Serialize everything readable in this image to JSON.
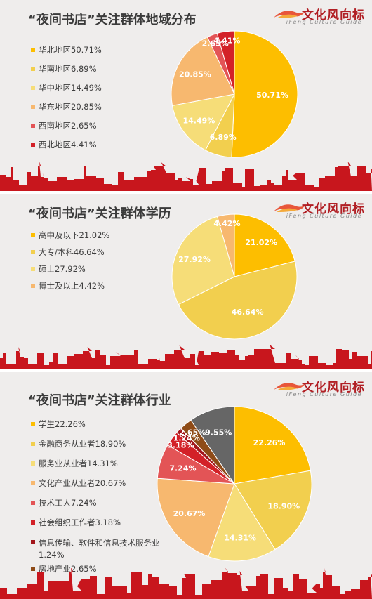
{
  "brand": {
    "name_cn": "文化风向标",
    "name_en": "iFeng Culture Guide"
  },
  "colors": {
    "skyline": "#c8161d",
    "slice_label": "#ffffff",
    "title": "#3b3b3b"
  },
  "chart_data": [
    {
      "type": "pie",
      "title": "“夜间书店”关注群体地域分布",
      "slices": [
        {
          "label": "华北地区",
          "value": 50.71,
          "display": "50.71%",
          "legend": "华北地区50.71%",
          "color": "#fdbe00"
        },
        {
          "label": "华南地区",
          "value": 6.89,
          "display": "6.89%",
          "legend": "华南地区6.89%",
          "color": "#f2cf4e"
        },
        {
          "label": "华中地区",
          "value": 14.49,
          "display": "14.49%",
          "legend": "华中地区14.49%",
          "color": "#f6dd78"
        },
        {
          "label": "华东地区",
          "value": 20.85,
          "display": "20.85%",
          "legend": "华东地区20.85%",
          "color": "#f7b86f"
        },
        {
          "label": "西南地区",
          "value": 2.65,
          "display": "2.65%",
          "legend": "西南地区2.65%",
          "color": "#e35456"
        },
        {
          "label": "西北地区",
          "value": 4.41,
          "display": "4.41%",
          "legend": "西北地区4.41%",
          "color": "#d32128"
        }
      ]
    },
    {
      "type": "pie",
      "title": "“夜间书店”关注群体学历",
      "slices": [
        {
          "label": "高中及以下",
          "value": 21.02,
          "display": "21.02%",
          "legend": "高中及以下21.02%",
          "color": "#fdbe00"
        },
        {
          "label": "大专/本科",
          "value": 46.64,
          "display": "46.64%",
          "legend": "大专/本科46.64%",
          "color": "#f2cf4e"
        },
        {
          "label": "硕士",
          "value": 27.92,
          "display": "27.92%",
          "legend": "硕士27.92%",
          "color": "#f6dd78"
        },
        {
          "label": "博士及以上",
          "value": 4.42,
          "display": "4.42%",
          "legend": "博士及以上4.42%",
          "color": "#f7b86f"
        }
      ]
    },
    {
      "type": "pie",
      "title": "“夜间书店”关注群体行业",
      "slices": [
        {
          "label": "学生",
          "value": 22.26,
          "display": "22.26%",
          "legend": "学生22.26%",
          "color": "#fdbe00"
        },
        {
          "label": "金融商务从业者",
          "value": 18.9,
          "display": "18.90%",
          "legend": "金融商务从业者18.90%",
          "color": "#f2cf4e"
        },
        {
          "label": "服务业从业者",
          "value": 14.31,
          "display": "14.31%",
          "legend": "服务业从业者14.31%",
          "color": "#f6dd78"
        },
        {
          "label": "文化产业从业者",
          "value": 20.67,
          "display": "20.67%",
          "legend": "文化产业从业者20.67%",
          "color": "#f7b86f"
        },
        {
          "label": "技术工人",
          "value": 7.24,
          "display": "7.24%",
          "legend": "技术工人7.24%",
          "color": "#e35456"
        },
        {
          "label": "社会组织工作者",
          "value": 3.18,
          "display": "3.18%",
          "legend": "社会组织工作者3.18%",
          "color": "#d32128"
        },
        {
          "label": "信息传输、软件和信息技术服务业",
          "value": 1.24,
          "display": "1.24%",
          "legend": "信息传输、软件和信息技术服务业1.24%",
          "color": "#a3161b"
        },
        {
          "label": "房地产业",
          "value": 2.65,
          "display": "2.65%",
          "legend": "房地产业2.65%",
          "color": "#8e4b17"
        },
        {
          "label": "",
          "value": 9.55,
          "display": "9.55%",
          "legend": "",
          "color": "#666666"
        }
      ]
    }
  ]
}
